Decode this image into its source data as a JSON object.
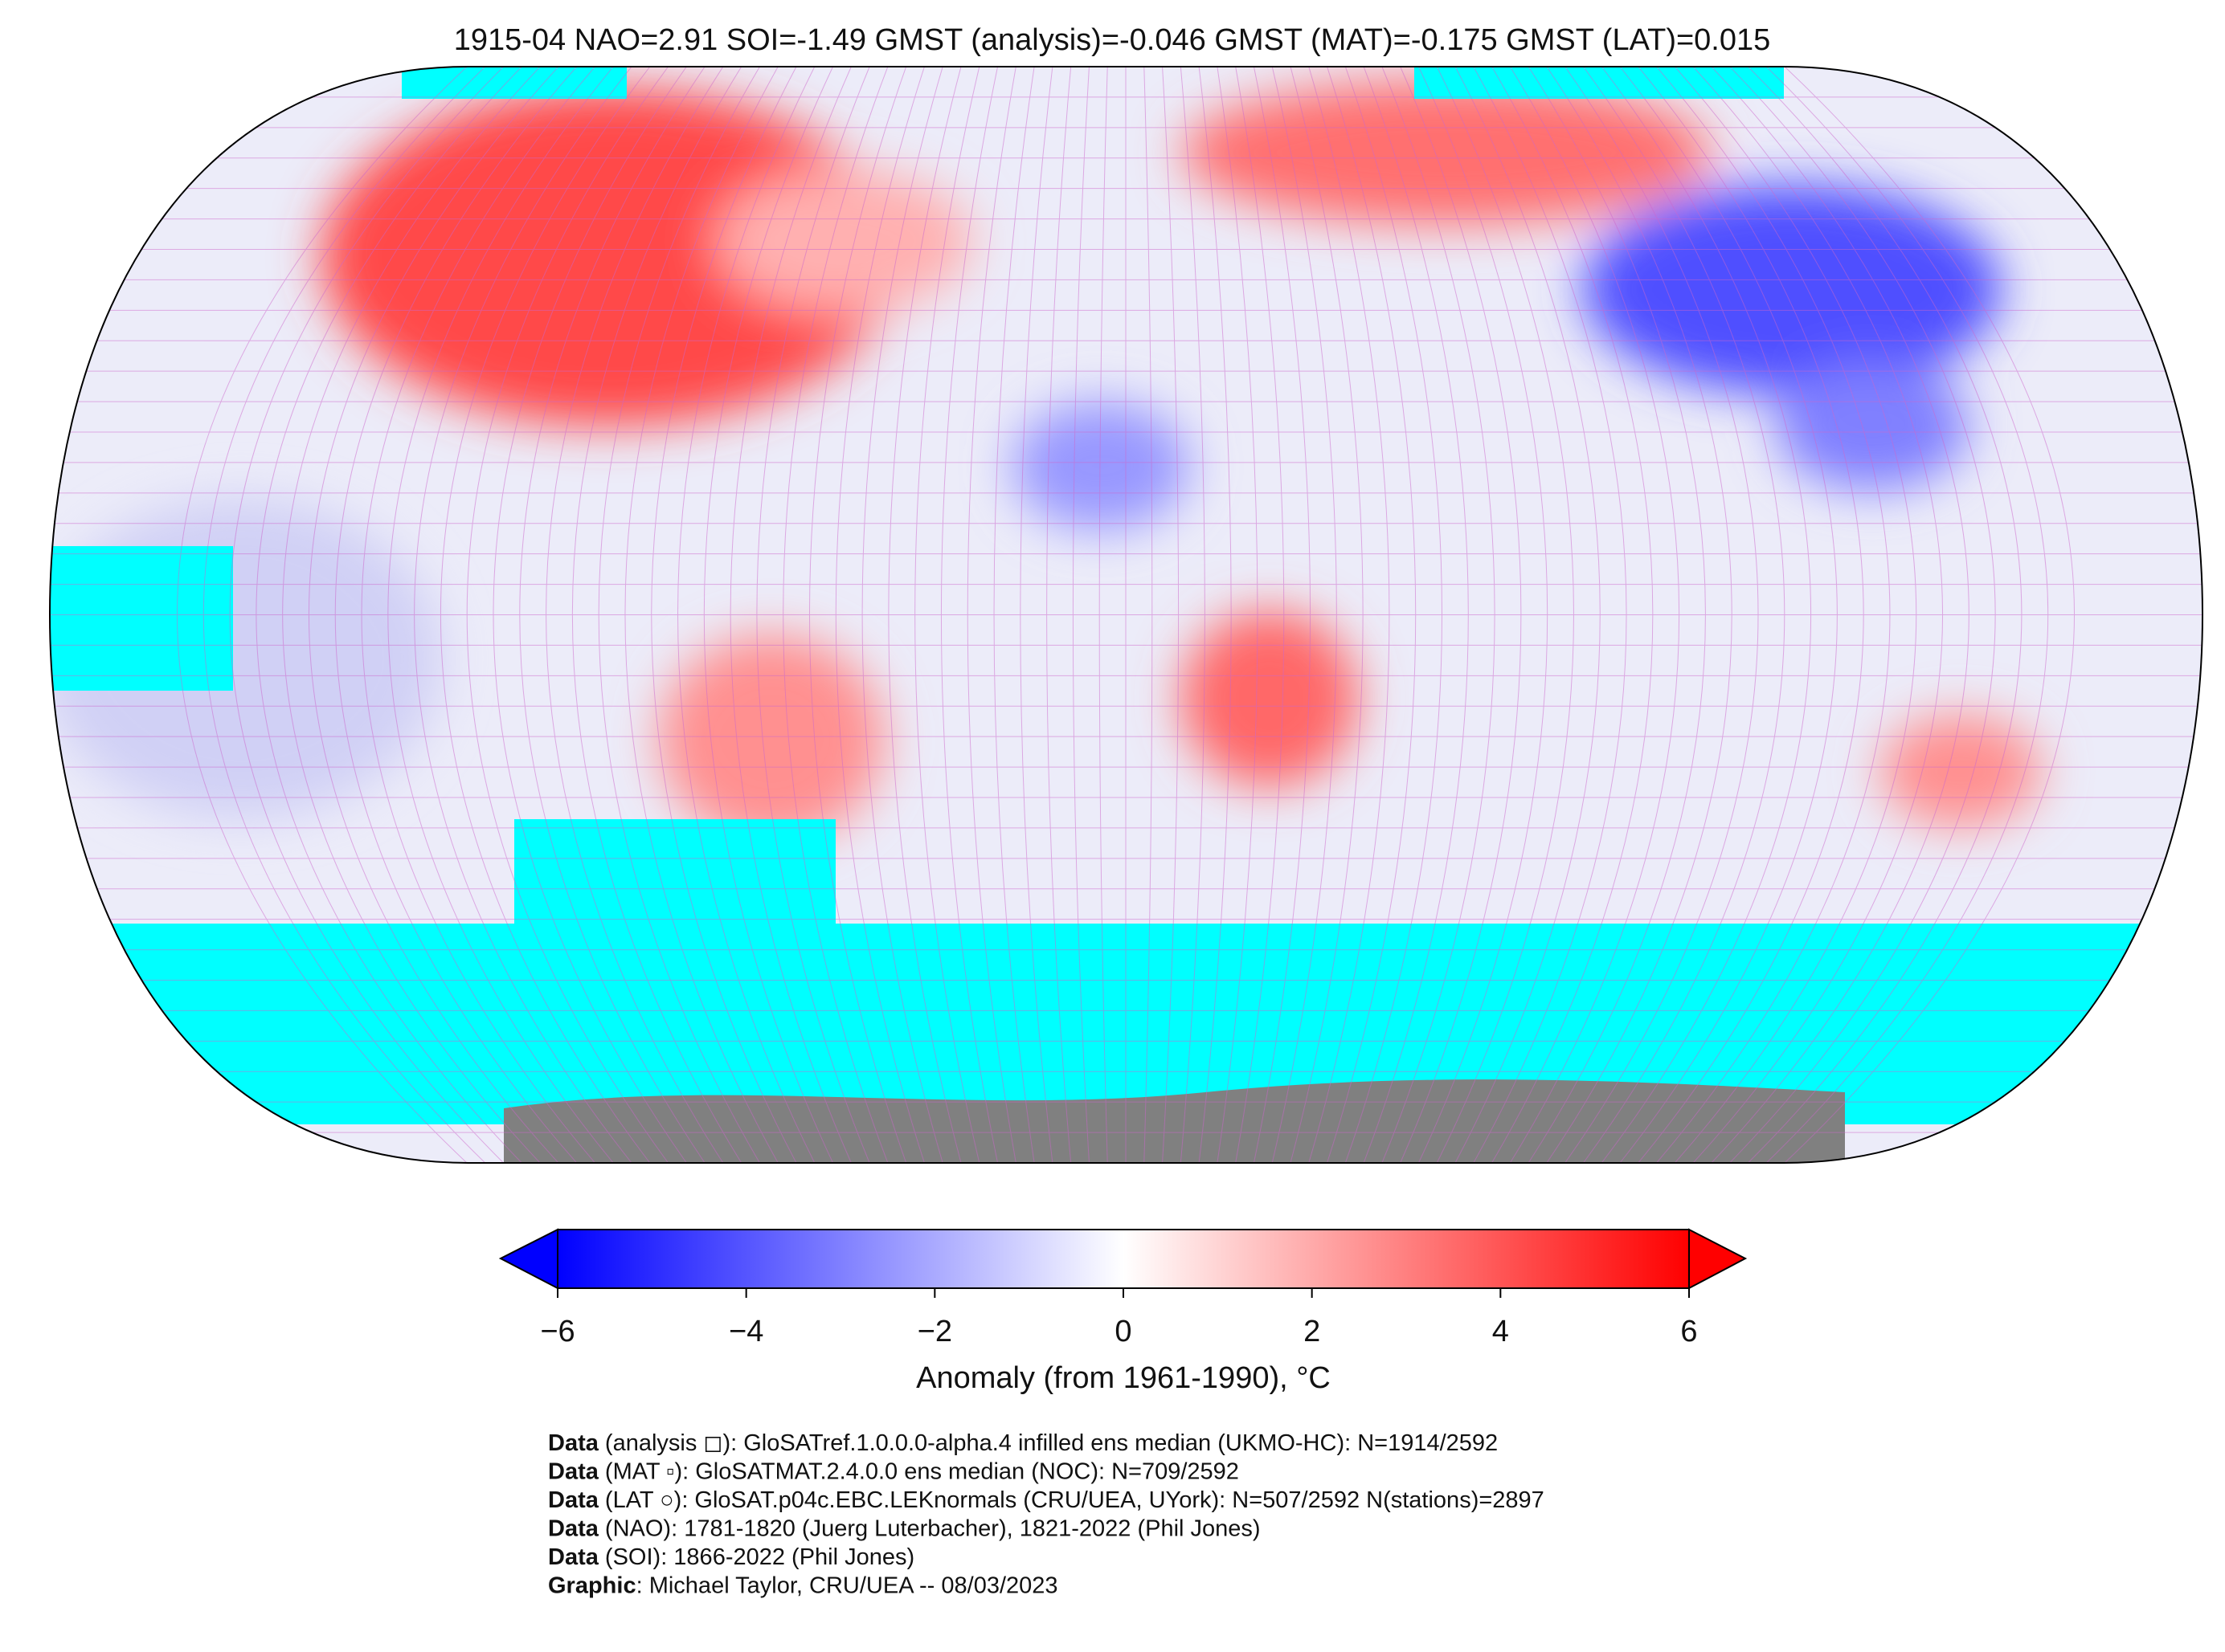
{
  "title": "1915-04 NAO=2.91 SOI=-1.49 GMST (analysis)=-0.046 GMST (MAT)=-0.175 GMST (LAT)=0.015",
  "chart_data": {
    "type": "heatmap",
    "projection": "Robinson world map, 5° grid",
    "title": "1915-04 NAO=2.91 SOI=-1.49 GMST (analysis)=-0.046 GMST (MAT)=-0.175 GMST (LAT)=0.015",
    "colorbar": {
      "label": "Anomaly (from 1961-1990), °C",
      "range": [
        -6,
        6
      ],
      "ticks": [
        -6,
        -4,
        -2,
        0,
        2,
        4,
        6
      ],
      "tick_labels": [
        "−6",
        "−4",
        "−2",
        "0",
        "2",
        "4",
        "6"
      ],
      "extend": "both",
      "colors": {
        "min": "#0000ff",
        "mid": "#ffffff",
        "max": "#ff0000"
      }
    },
    "colors": {
      "no_data": "#00ffff",
      "land_mask": "#808080",
      "grid": "#cc66cc"
    },
    "markers": {
      "analysis": "square",
      "MAT": "small-square",
      "LAT": "circle"
    }
  },
  "footer": [
    {
      "bold": "Data",
      "text": " (analysis ◻): GloSATref.1.0.0.0-alpha.4 infilled ens median (UKMO-HC): N=1914/2592"
    },
    {
      "bold": "Data",
      "text": " (MAT ▫): GloSATMAT.2.4.0.0 ens median (NOC): N=709/2592"
    },
    {
      "bold": "Data",
      "text": " (LAT ○): GloSAT.p04c.EBC.LEKnormals (CRU/UEA, UYork): N=507/2592 N(stations)=2897"
    },
    {
      "bold": "Data",
      "text": " (NAO): 1781-1820 (Juerg Luterbacher), 1821-2022 (Phil Jones)"
    },
    {
      "bold": "Data",
      "text": " (SOI): 1866-2022 (Phil Jones)"
    },
    {
      "bold": "Graphic",
      "text": ": Michael Taylor, CRU/UEA -- 08/03/2023"
    }
  ]
}
